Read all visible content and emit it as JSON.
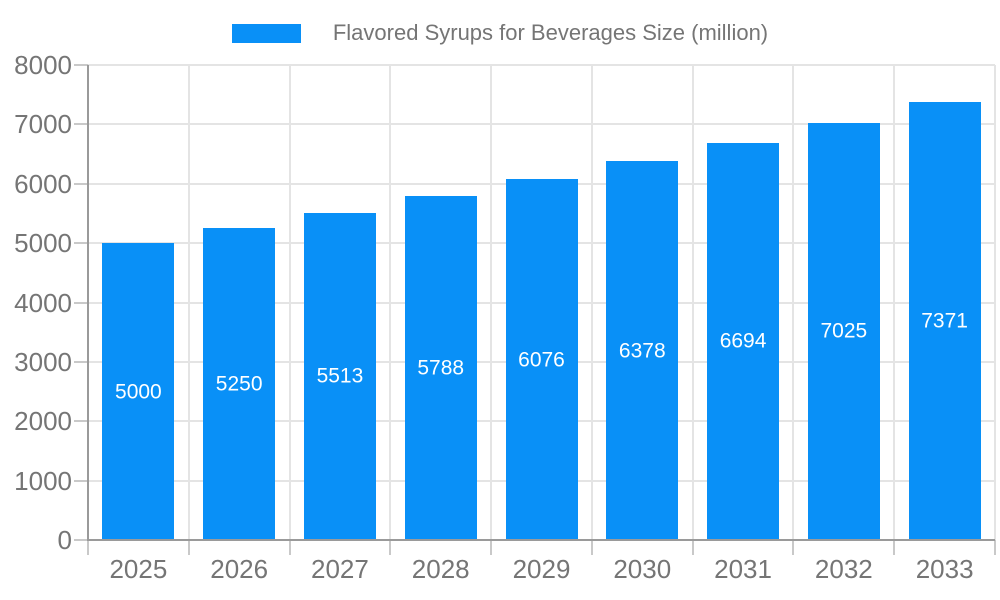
{
  "chart_data": {
    "type": "bar",
    "title": "Flavored Syrups for Beverages Size (million)",
    "legend_entries": [
      "Flavored Syrups for Beverages Size (million)"
    ],
    "legend_position": "top-center",
    "categories": [
      "2025",
      "2026",
      "2027",
      "2028",
      "2029",
      "2030",
      "2031",
      "2032",
      "2033"
    ],
    "series": [
      {
        "name": "Flavored Syrups for Beverages Size (million)",
        "values": [
          5000,
          5250,
          5513,
          5788,
          6076,
          6378,
          6694,
          7025,
          7371
        ]
      }
    ],
    "value_labels": [
      "5000",
      "5250",
      "5513",
      "5788",
      "6076",
      "6378",
      "6694",
      "7025",
      "7371"
    ],
    "value_labels_position": "inside-center",
    "xlabel": "",
    "ylabel": "",
    "ylim": [
      0,
      8000
    ],
    "y_ticks": [
      0,
      1000,
      2000,
      3000,
      4000,
      5000,
      6000,
      7000,
      8000
    ],
    "y_tick_labels": [
      "0",
      "1000",
      "2000",
      "3000",
      "4000",
      "5000",
      "6000",
      "7000",
      "8000"
    ],
    "grid": true,
    "colors": {
      "bar": "#0990f7",
      "grid_line": "#e4e4e4",
      "axis_line": "#9a9a9a",
      "tick_mark": "#c9c9c9",
      "axis_text": "#757575",
      "value_label_text": "#ffffff",
      "background": "#ffffff"
    }
  }
}
